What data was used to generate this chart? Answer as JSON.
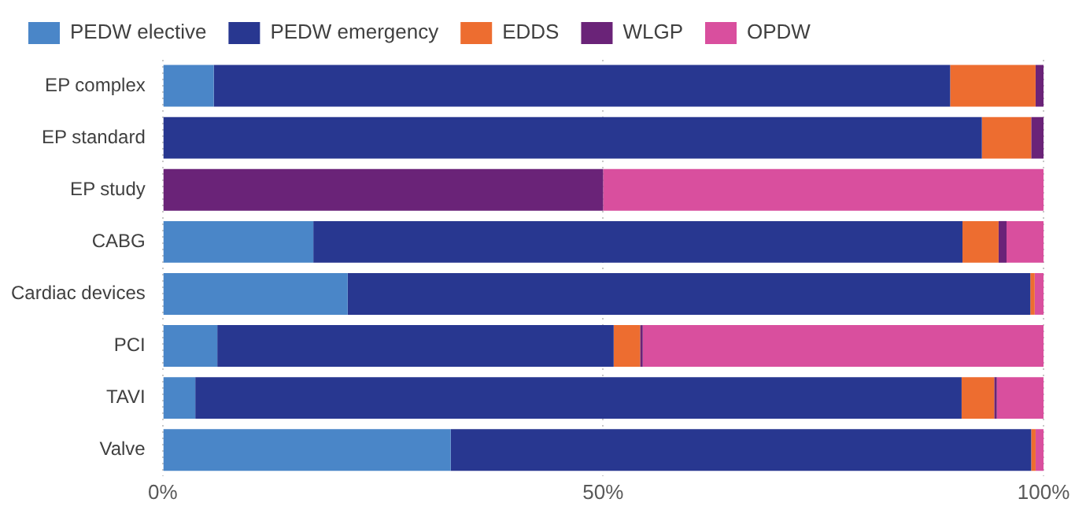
{
  "chart_data": {
    "type": "bar",
    "orientation": "horizontal",
    "stacked": true,
    "legend": "top",
    "grid": "x",
    "categories": [
      "EP complex",
      "EP standard",
      "EP study",
      "CABG",
      "Cardiac devices",
      "PCI",
      "TAVI",
      "Valve"
    ],
    "xlim": [
      0,
      100
    ],
    "xticks": [
      {
        "value": 0,
        "label": "0%"
      },
      {
        "value": 50,
        "label": "50%"
      },
      {
        "value": 100,
        "label": "100%"
      }
    ],
    "series": [
      {
        "name": "PEDW elective",
        "color": "#4a86c8",
        "values": [
          5.8,
          0,
          0,
          17.1,
          21.0,
          6.2,
          3.7,
          32.7
        ]
      },
      {
        "name": "PEDW emergency",
        "color": "#283790",
        "values": [
          83.6,
          93.0,
          0,
          73.7,
          77.5,
          45.0,
          87.0,
          65.9
        ]
      },
      {
        "name": "EDDS",
        "color": "#ed6d30",
        "values": [
          9.7,
          5.6,
          0,
          4.1,
          0.5,
          3.0,
          3.7,
          0.5
        ]
      },
      {
        "name": "WLGP",
        "color": "#6a2378",
        "values": [
          0.9,
          1.4,
          50,
          0.9,
          0,
          0.3,
          0.3,
          0
        ]
      },
      {
        "name": "OPDW",
        "color": "#d94f9e",
        "values": [
          0,
          0,
          50,
          4.2,
          1.0,
          45.5,
          5.3,
          0.9
        ]
      }
    ]
  }
}
